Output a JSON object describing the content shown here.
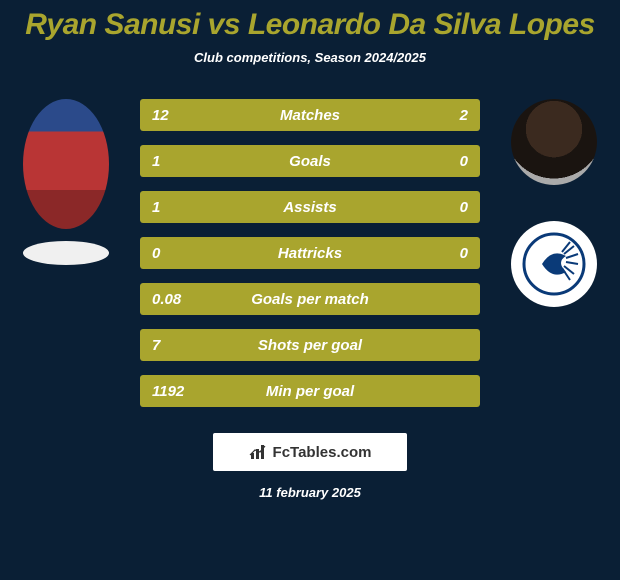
{
  "colors": {
    "bg": "#0a1f35",
    "title": "#a9a52e",
    "subtitle": "#ffffff",
    "row_bg": "#a9a52e",
    "row_text": "#ffffff",
    "badge_bg": "#f0f0f0",
    "team_logo_bg": "#ffffff",
    "date_color": "#ffffff"
  },
  "title": "Ryan Sanusi vs Leonardo Da Silva Lopes",
  "subtitle": "Club competitions, Season 2024/2025",
  "rows": [
    {
      "left": "12",
      "label": "Matches",
      "right": "2"
    },
    {
      "left": "1",
      "label": "Goals",
      "right": "0"
    },
    {
      "left": "1",
      "label": "Assists",
      "right": "0"
    },
    {
      "left": "0",
      "label": "Hattricks",
      "right": "0"
    },
    {
      "left": "0.08",
      "label": "Goals per match",
      "right": ""
    },
    {
      "left": "7",
      "label": "Shots per goal",
      "right": ""
    },
    {
      "left": "1192",
      "label": "Min per goal",
      "right": ""
    }
  ],
  "footer_brand": "FcTables.com",
  "date": "11 february 2025"
}
